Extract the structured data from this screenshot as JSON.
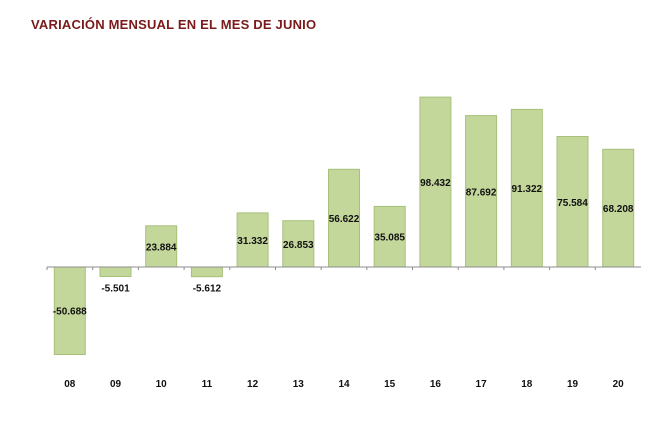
{
  "title": "VARIACIÓN MENSUAL EN EL MES DE JUNIO",
  "colors": {
    "title": "#7a1a1a",
    "bar_fill": "#c4d79b",
    "bar_stroke": "#a7c07a",
    "axis": "#8c8c8c"
  },
  "chart_data": {
    "type": "bar",
    "title": "VARIACIÓN MENSUAL EN EL MES DE JUNIO",
    "xlabel": "",
    "ylabel": "",
    "categories": [
      "08",
      "09",
      "10",
      "11",
      "12",
      "13",
      "14",
      "15",
      "16",
      "17",
      "18",
      "19",
      "20"
    ],
    "values": [
      -50.688,
      -5.501,
      23.884,
      -5.612,
      31.332,
      26.853,
      56.622,
      35.085,
      98.432,
      87.692,
      91.322,
      75.584,
      68.208
    ],
    "value_labels": [
      "-50.688",
      "-5.501",
      "23.884",
      "-5.612",
      "31.332",
      "26.853",
      "56.622",
      "35.085",
      "98.432",
      "87.692",
      "91.322",
      "75.584",
      "68.208"
    ],
    "grid": false,
    "legend": "none"
  }
}
